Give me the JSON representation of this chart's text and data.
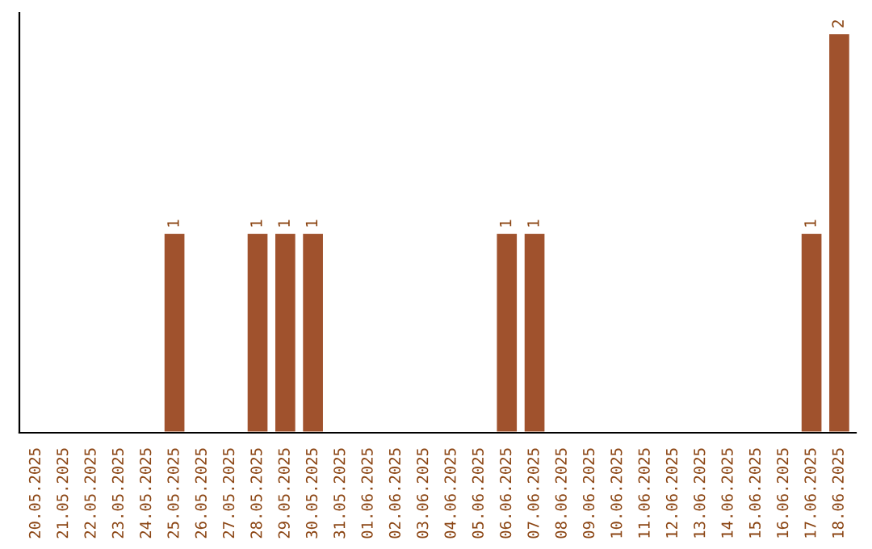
{
  "chart_data": {
    "type": "bar",
    "categories": [
      "20.05.2025",
      "21.05.2025",
      "22.05.2025",
      "23.05.2025",
      "24.05.2025",
      "25.05.2025",
      "26.05.2025",
      "27.05.2025",
      "28.05.2025",
      "29.05.2025",
      "30.05.2025",
      "31.05.2025",
      "01.06.2025",
      "02.06.2025",
      "03.06.2025",
      "04.06.2025",
      "05.06.2025",
      "06.06.2025",
      "07.06.2025",
      "08.06.2025",
      "09.06.2025",
      "10.06.2025",
      "11.06.2025",
      "12.06.2025",
      "13.06.2025",
      "14.06.2025",
      "15.06.2025",
      "16.06.2025",
      "17.06.2025",
      "18.06.2025"
    ],
    "values": [
      null,
      null,
      null,
      null,
      null,
      1,
      null,
      null,
      1,
      1,
      1,
      null,
      null,
      null,
      null,
      null,
      null,
      1,
      1,
      null,
      null,
      null,
      null,
      null,
      null,
      null,
      null,
      null,
      1,
      2
    ],
    "value_labels": [
      null,
      null,
      null,
      null,
      null,
      "1",
      null,
      null,
      "1",
      "1",
      "1",
      null,
      null,
      null,
      null,
      null,
      null,
      "1",
      "1",
      null,
      null,
      null,
      null,
      null,
      null,
      null,
      null,
      null,
      "1",
      "2"
    ],
    "color": "#a0522d",
    "grid": false,
    "legend": false
  }
}
